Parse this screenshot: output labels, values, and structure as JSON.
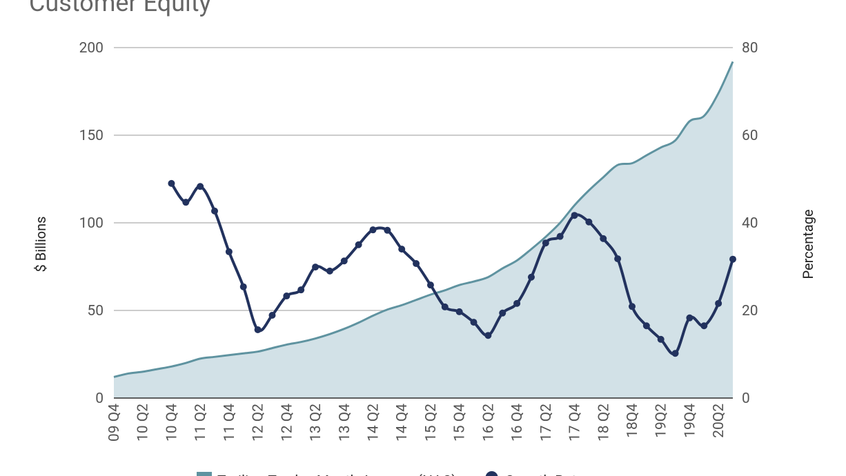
{
  "chart_data": {
    "type": "area_line",
    "title": "Customer Equity",
    "categories": [
      "09 Q4",
      null,
      "10 Q2",
      null,
      "10 Q4",
      null,
      "11 Q2",
      null,
      "11 Q4",
      null,
      "12 Q2",
      null,
      "12 Q4",
      null,
      "13 Q2",
      null,
      "13 Q4",
      null,
      "14 Q2",
      null,
      "14 Q4",
      null,
      "15 Q2",
      null,
      "15 Q4",
      null,
      "16 Q2",
      null,
      "16 Q4",
      null,
      "17 Q2",
      null,
      "17 Q4",
      null,
      "18 Q2",
      null,
      "18Q4",
      null,
      "19Q2",
      null,
      "19Q4",
      null,
      "20Q2",
      null
    ],
    "series": [
      {
        "name": "Trailing Twelve Month Average (NAC)",
        "color": "#5f93a0",
        "fill": "#d2e1e7",
        "kind": "area",
        "values": [
          12,
          14,
          15,
          16.5,
          18,
          20,
          22.5,
          23.5,
          24.5,
          25.5,
          26.5,
          28.5,
          30.5,
          32,
          34,
          36.5,
          39.5,
          43,
          47,
          50.5,
          53,
          56,
          59,
          61.5,
          64.5,
          66.5,
          69,
          74,
          78.5,
          85,
          92,
          100,
          110,
          118.5,
          126,
          133,
          134,
          138.5,
          143,
          147,
          158,
          161,
          174,
          192
        ]
      },
      {
        "name": "Growth Rate",
        "color": "#22325e",
        "kind": "line",
        "axis": "y2",
        "values": [
          null,
          null,
          null,
          null,
          49,
          44.7,
          48.3,
          42.7,
          33.4,
          25.4,
          15.6,
          18.9,
          23.3,
          24.7,
          29.9,
          29,
          31.3,
          35,
          38.4,
          38.3,
          34,
          30.7,
          25.8,
          20.8,
          19.7,
          17.3,
          14.3,
          19.4,
          21.6,
          27.6,
          35.4,
          36.9,
          41.7,
          40.2,
          36.4,
          31.8,
          20.9,
          16.5,
          13.4,
          10.2,
          18.3,
          16.5,
          21.6,
          31.7
        ]
      }
    ],
    "ylabel": "$ Billions",
    "y2label": "Percentage",
    "ylim": [
      0,
      200
    ],
    "yticks": [
      0,
      50,
      100,
      150,
      200
    ],
    "y2lim": [
      0,
      80
    ],
    "y2ticks": [
      0,
      20,
      40,
      60,
      80
    ],
    "grid": true
  }
}
